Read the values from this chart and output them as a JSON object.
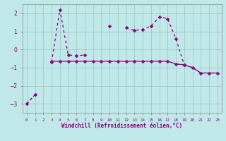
{
  "xlabel": "Windchill (Refroidissement éolien,°C)",
  "hours": [
    0,
    1,
    2,
    3,
    4,
    5,
    6,
    7,
    8,
    9,
    10,
    11,
    12,
    13,
    14,
    15,
    16,
    17,
    18,
    19,
    20,
    21,
    22,
    23
  ],
  "y_spiky": [
    -3.0,
    -2.5,
    null,
    -0.7,
    2.2,
    -0.3,
    -0.35,
    -0.3,
    null,
    null,
    1.3,
    null,
    1.2,
    1.05,
    1.1,
    1.3,
    1.8,
    1.7,
    0.6,
    -0.85,
    null,
    null,
    null,
    null
  ],
  "y_flat": [
    null,
    null,
    null,
    -0.65,
    -0.65,
    -0.65,
    -0.65,
    -0.65,
    -0.65,
    -0.65,
    -0.65,
    -0.65,
    -0.65,
    -0.65,
    -0.65,
    -0.65,
    -0.65,
    -0.65,
    -0.8,
    -0.85,
    -1.0,
    -1.3,
    -1.3,
    -1.3
  ],
  "y_diagonal": [
    -3.0,
    -2.5,
    null,
    null,
    null,
    null,
    null,
    null,
    null,
    null,
    null,
    null,
    null,
    null,
    null,
    null,
    null,
    null,
    -0.8,
    -0.85,
    -1.0,
    -1.3,
    -1.3,
    -1.3
  ],
  "bg_color": "#c0e8e8",
  "line_color": "#880080",
  "grid_color": "#98c4c4",
  "ylim": [
    -3.5,
    2.5
  ],
  "yticks": [
    -3,
    -2,
    -1,
    0,
    1,
    2
  ],
  "xlim": [
    -0.5,
    23.5
  ]
}
